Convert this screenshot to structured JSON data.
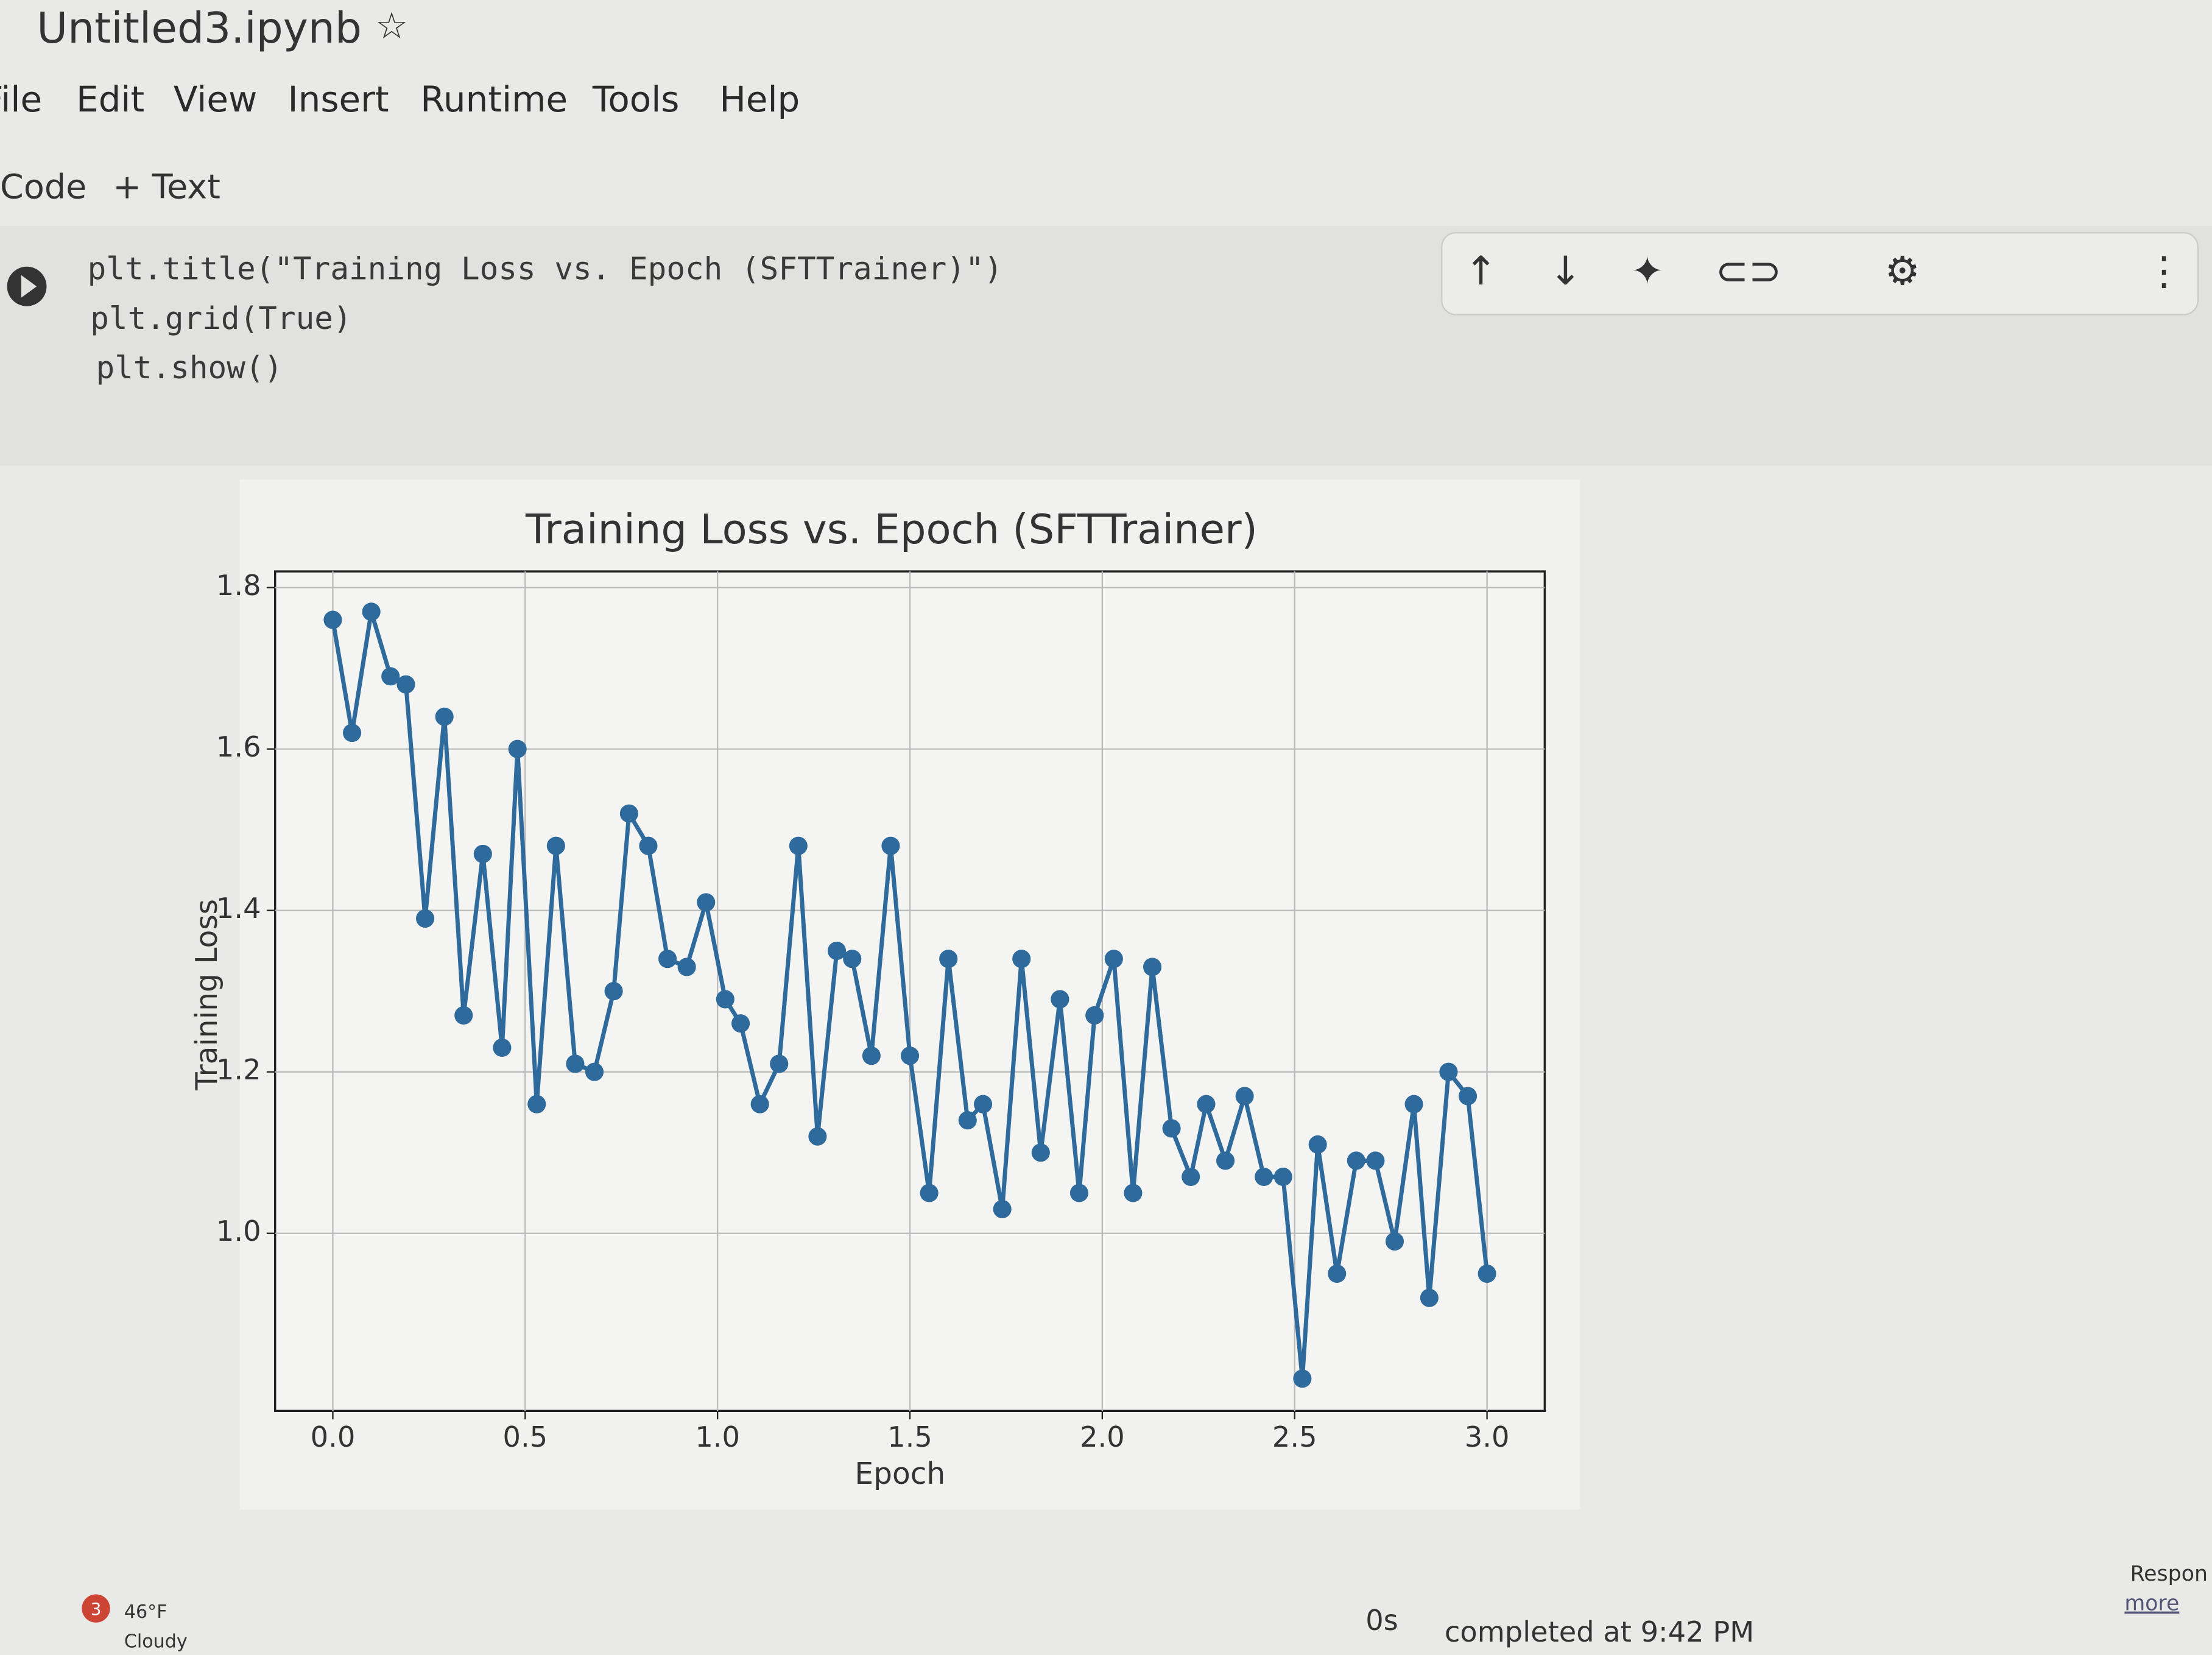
{
  "header": {
    "title": "Untitled3.ipynb",
    "menu": [
      "File",
      "Edit",
      "View",
      "Insert",
      "Runtime",
      "Tools",
      "Help"
    ]
  },
  "toolbar": {
    "code": "Code",
    "text": "+ Text"
  },
  "cell": {
    "code_lines": [
      "plt.title(\"Training Loss vs. Epoch (SFTTrainer)\")",
      "plt.grid(True)",
      "plt.show()"
    ]
  },
  "chart_data": {
    "type": "line",
    "title": "Training Loss vs. Epoch (SFTTrainer)",
    "x_label": "Epoch",
    "y_label": "Training Loss",
    "x": [
      0,
      0.05,
      0.1,
      0.15,
      0.19,
      0.24,
      0.29,
      0.34,
      0.39,
      0.44,
      0.48,
      0.53,
      0.58,
      0.63,
      0.68,
      0.73,
      0.77,
      0.82,
      0.87,
      0.92,
      0.97,
      1.02,
      1.06,
      1.11,
      1.16,
      1.21,
      1.26,
      1.31,
      1.35,
      1.4,
      1.45,
      1.5,
      1.55,
      1.6,
      1.65,
      1.69,
      1.74,
      1.79,
      1.84,
      1.89,
      1.94,
      1.98,
      2.03,
      2.08,
      2.13,
      2.18,
      2.23,
      2.27,
      2.32,
      2.37,
      2.42,
      2.47,
      2.52,
      2.56,
      2.61,
      2.66,
      2.71,
      2.76,
      2.81,
      2.85,
      2.9,
      2.95,
      3.0
    ],
    "values": [
      1.76,
      1.62,
      1.77,
      1.69,
      1.68,
      1.39,
      1.64,
      1.27,
      1.47,
      1.23,
      1.6,
      1.16,
      1.48,
      1.21,
      1.2,
      1.3,
      1.52,
      1.48,
      1.34,
      1.33,
      1.41,
      1.29,
      1.26,
      1.16,
      1.21,
      1.48,
      1.12,
      1.35,
      1.34,
      1.22,
      1.48,
      1.22,
      1.05,
      1.34,
      1.14,
      1.16,
      1.03,
      1.34,
      1.1,
      1.29,
      1.05,
      1.27,
      1.34,
      1.05,
      1.33,
      1.13,
      1.07,
      1.16,
      1.09,
      1.17,
      1.07,
      1.07,
      0.82,
      1.11,
      0.95,
      1.09,
      1.09,
      0.99,
      1.16,
      0.92,
      1.2,
      1.17,
      0.95
    ],
    "color": "#2e6a9c",
    "xlim": [
      -0.15,
      3.15
    ],
    "ylim": [
      0.78,
      1.82
    ],
    "xticks": [
      {
        "value": 0,
        "label": "0.0"
      },
      0.5,
      {
        "value": 1,
        "label": "1.0"
      },
      1.5,
      {
        "value": 2,
        "label": "2.0"
      },
      2.5,
      {
        "value": 3,
        "label": "3.0"
      }
    ],
    "yticks": [
      {
        "value": 1,
        "label": "1.0"
      },
      1.2,
      1.4,
      1.6,
      1.8
    ],
    "grid": true
  },
  "status": {
    "duration": "0s",
    "completed": "completed at 9:42 PM"
  },
  "taskbar": {
    "badge": "3",
    "temperature": "46°F",
    "weather": "Cloudy"
  },
  "side": {
    "respond": "Respon",
    "more": "more"
  }
}
